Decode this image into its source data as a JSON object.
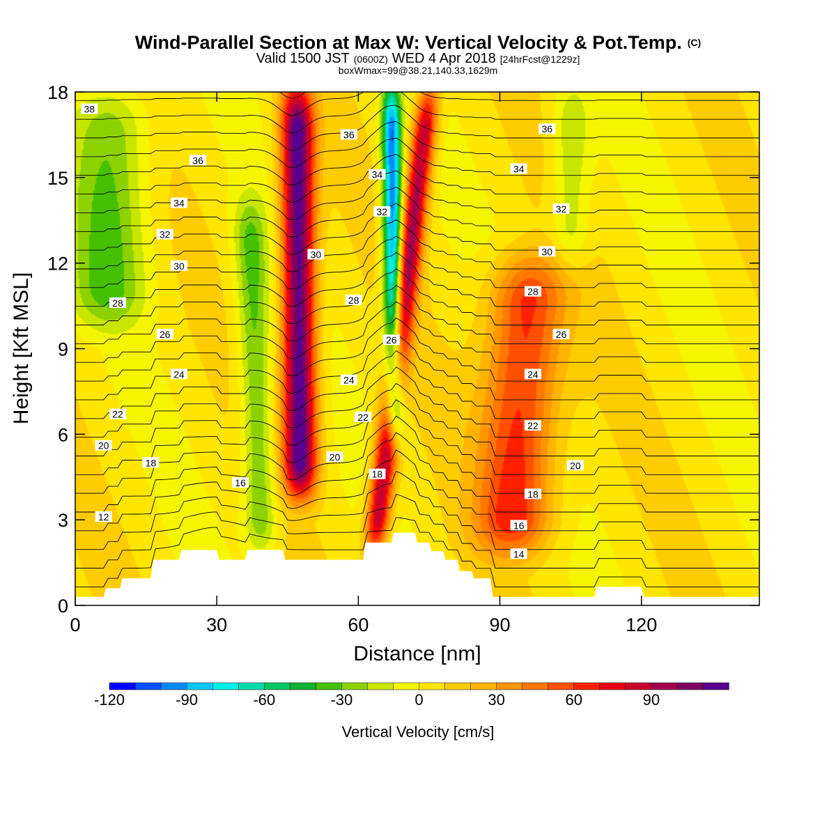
{
  "title": {
    "main": "Wind-Parallel Section at Max W: Vertical Velocity & Pot.Temp.",
    "main_sup": "(C)",
    "sub_a": "Valid 1500 JST",
    "sub_b": "(0600Z)",
    "sub_c": "WED 4 Apr 2018",
    "sub_d": "[24hrFcst@1229z]",
    "line3": "boxWmax=99@38.21,140.33,1629m"
  },
  "chart_data": {
    "type": "heatmap",
    "xlabel": "Distance [nm]",
    "ylabel": "Height [Kft MSL]",
    "xlim": [
      0,
      145
    ],
    "ylim": [
      0,
      18
    ],
    "x_ticks": [
      "0",
      "30",
      "60",
      "90",
      "120"
    ],
    "x_tick_values": [
      0,
      30,
      60,
      90,
      120
    ],
    "y_ticks": [
      "0",
      "3",
      "6",
      "9",
      "12",
      "15",
      "18"
    ],
    "y_tick_values": [
      0,
      3,
      6,
      9,
      12,
      15,
      18
    ],
    "grid": false,
    "colorbar": {
      "label": "Vertical Velocity [cm/s]",
      "placement": "bottom",
      "min": -120,
      "max": 110,
      "step": 10,
      "tick_labels": [
        "-120",
        "-90",
        "-60",
        "-30",
        "0",
        "30",
        "60",
        "90"
      ],
      "tick_values": [
        -120,
        -90,
        -60,
        -30,
        0,
        30,
        60,
        90
      ],
      "colors": [
        "#0000ff",
        "#0050ff",
        "#008cff",
        "#00c8ff",
        "#00f0e6",
        "#00dcaa",
        "#00c864",
        "#10b030",
        "#44c000",
        "#8cd200",
        "#c8e600",
        "#f5f500",
        "#ffe600",
        "#ffcc00",
        "#ffb400",
        "#ff9600",
        "#ff7800",
        "#ff5000",
        "#ff2000",
        "#e80010",
        "#c80030",
        "#a00050",
        "#800060",
        "#5a0090"
      ]
    },
    "velocity_field_cm_s": {
      "background": 5,
      "features": [
        {
          "name": "updraft-mountain-wave",
          "x_center_at_0": 48,
          "x_center_at_18": 47,
          "half_width_nm": 3.5,
          "peak": 115,
          "height_range_kft": [
            4,
            18
          ]
        },
        {
          "name": "downdraft-lee",
          "x_center_at_0": 40,
          "x_center_at_18": 36,
          "half_width_nm": 3.5,
          "peak": -38,
          "height_range_kft": [
            2,
            14
          ]
        },
        {
          "name": "updraft-ridge",
          "x_center_at_0": 62,
          "x_center_at_18": 75,
          "half_width_nm": 2.5,
          "peak": 90,
          "height_range_kft": [
            2,
            18
          ]
        },
        {
          "name": "downdraft-core",
          "x_center_at_0": 68,
          "x_center_at_18": 67,
          "half_width_nm": 2.0,
          "peak": -105,
          "height_range_kft": [
            6,
            18
          ]
        },
        {
          "name": "updraft-east",
          "x_center_at_0": 92,
          "x_center_at_18": 98,
          "half_width_nm": 8,
          "peak": 62,
          "height_range_kft": [
            2,
            12
          ]
        },
        {
          "name": "downdraft-west-upper",
          "x_center_at_0": 5,
          "x_center_at_18": 8,
          "half_width_nm": 8,
          "peak": -35,
          "height_range_kft": [
            10,
            18
          ]
        },
        {
          "name": "downdraft-east-upper",
          "x_center_at_0": 105,
          "x_center_at_18": 105,
          "half_width_nm": 4,
          "peak": -25,
          "height_range_kft": [
            12,
            18
          ]
        }
      ]
    },
    "terrain_kft": {
      "x": [
        0,
        6,
        6.5,
        9.5,
        10,
        16,
        16.5,
        22,
        22.5,
        30,
        30.5,
        36,
        36.5,
        44,
        44.5,
        61,
        61.5,
        67,
        67.5,
        72,
        72.5,
        75,
        75.5,
        78,
        78.5,
        81,
        81.5,
        84,
        84.5,
        88,
        88.5,
        110,
        110.5,
        120,
        120.5,
        145
      ],
      "y": [
        0.3,
        0.3,
        0.6,
        0.6,
        0.95,
        0.95,
        1.6,
        1.6,
        1.95,
        1.95,
        1.6,
        1.6,
        1.95,
        1.95,
        1.6,
        1.6,
        2.2,
        2.2,
        2.55,
        2.55,
        2.2,
        2.2,
        1.9,
        1.9,
        1.6,
        1.6,
        1.2,
        1.2,
        0.95,
        0.95,
        0.3,
        0.3,
        0.65,
        0.65,
        0.3,
        0.3
      ]
    },
    "theta_contours_C": {
      "interval": 1,
      "min": 10,
      "max": 38,
      "labels": [
        {
          "value": "38",
          "x": 3,
          "y": 17.4
        },
        {
          "value": "36",
          "x": 26,
          "y": 15.6
        },
        {
          "value": "34",
          "x": 22,
          "y": 14.1
        },
        {
          "value": "32",
          "x": 19,
          "y": 13.0
        },
        {
          "value": "30",
          "x": 22,
          "y": 11.9
        },
        {
          "value": "28",
          "x": 9,
          "y": 10.6
        },
        {
          "value": "26",
          "x": 19,
          "y": 9.5
        },
        {
          "value": "24",
          "x": 22,
          "y": 8.1
        },
        {
          "value": "22",
          "x": 9,
          "y": 6.7
        },
        {
          "value": "20",
          "x": 6,
          "y": 5.6
        },
        {
          "value": "18",
          "x": 16,
          "y": 5.0
        },
        {
          "value": "16",
          "x": 35,
          "y": 4.3
        },
        {
          "value": "12",
          "x": 6,
          "y": 3.1
        },
        {
          "value": "36",
          "x": 58,
          "y": 16.5
        },
        {
          "value": "34",
          "x": 64,
          "y": 15.1
        },
        {
          "value": "32",
          "x": 65,
          "y": 13.8
        },
        {
          "value": "30",
          "x": 51,
          "y": 12.3
        },
        {
          "value": "28",
          "x": 59,
          "y": 10.7
        },
        {
          "value": "26",
          "x": 67,
          "y": 9.3
        },
        {
          "value": "24",
          "x": 58,
          "y": 7.9
        },
        {
          "value": "22",
          "x": 61,
          "y": 6.6
        },
        {
          "value": "20",
          "x": 55,
          "y": 5.2
        },
        {
          "value": "18",
          "x": 64,
          "y": 4.6
        },
        {
          "value": "36",
          "x": 100,
          "y": 16.7
        },
        {
          "value": "34",
          "x": 94,
          "y": 15.3
        },
        {
          "value": "32",
          "x": 103,
          "y": 13.9
        },
        {
          "value": "30",
          "x": 100,
          "y": 12.4
        },
        {
          "value": "28",
          "x": 97,
          "y": 11.0
        },
        {
          "value": "26",
          "x": 103,
          "y": 9.5
        },
        {
          "value": "24",
          "x": 97,
          "y": 8.1
        },
        {
          "value": "22",
          "x": 97,
          "y": 6.3
        },
        {
          "value": "20",
          "x": 106,
          "y": 4.9
        },
        {
          "value": "18",
          "x": 97,
          "y": 3.9
        },
        {
          "value": "16",
          "x": 94,
          "y": 2.8
        },
        {
          "value": "14",
          "x": 94,
          "y": 1.8
        }
      ]
    }
  }
}
